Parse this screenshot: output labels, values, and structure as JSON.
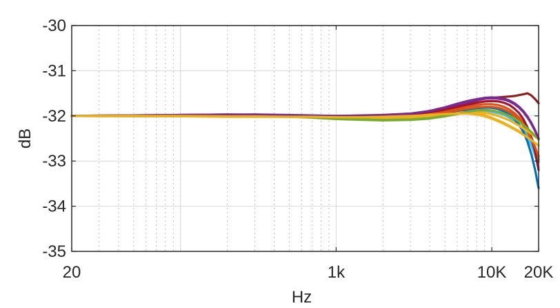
{
  "chart_data": {
    "type": "line",
    "title": "",
    "xlabel": "Hz",
    "ylabel": "dB",
    "xscale": "log",
    "xlim": [
      20,
      20000
    ],
    "ylim": [
      -35,
      -30
    ],
    "xticks": [
      20,
      1000,
      10000,
      20000
    ],
    "xtick_labels": [
      "20",
      "1k",
      "10K",
      "20K"
    ],
    "yticks": [
      -35,
      -34,
      -33,
      -32,
      -31,
      -30
    ],
    "ytick_labels": [
      "-35",
      "-34",
      "-33",
      "-32",
      "-31",
      "-30"
    ],
    "grid": true,
    "legend": "none",
    "x": [
      20,
      50,
      100,
      200,
      300,
      500,
      700,
      1000,
      1500,
      2000,
      3000,
      4000,
      5000,
      6000,
      7000,
      8000,
      9000,
      10000,
      11000,
      12000,
      13000,
      14000,
      15000,
      16000,
      17000,
      18000,
      19000,
      20000
    ],
    "series": [
      {
        "color": "#8e1f1f",
        "values": [
          -32,
          -31.99,
          -31.98,
          -31.97,
          -31.98,
          -31.99,
          -32.0,
          -32.0,
          -31.99,
          -31.98,
          -31.95,
          -31.9,
          -31.84,
          -31.78,
          -31.72,
          -31.66,
          -31.62,
          -31.6,
          -31.59,
          -31.58,
          -31.57,
          -31.56,
          -31.54,
          -31.52,
          -31.5,
          -31.55,
          -31.63,
          -31.72
        ]
      },
      {
        "color": "#7b2a8f",
        "values": [
          -32,
          -31.99,
          -31.98,
          -31.98,
          -31.97,
          -31.99,
          -32.01,
          -32.02,
          -32.02,
          -32.01,
          -31.98,
          -31.92,
          -31.84,
          -31.76,
          -31.7,
          -31.65,
          -31.62,
          -31.61,
          -31.62,
          -31.64,
          -31.68,
          -31.74,
          -31.82,
          -31.92,
          -32.04,
          -32.18,
          -32.34,
          -32.52
        ]
      },
      {
        "color": "#0072bd",
        "values": [
          -32,
          -32.0,
          -31.99,
          -31.99,
          -31.99,
          -32.0,
          -32.02,
          -32.03,
          -32.05,
          -32.06,
          -32.05,
          -32.0,
          -31.95,
          -31.9,
          -31.86,
          -31.83,
          -31.82,
          -31.82,
          -31.84,
          -31.87,
          -31.92,
          -31.98,
          -32.06,
          -32.16,
          -32.3,
          -32.48,
          -32.7,
          -32.96
        ]
      },
      {
        "color": "#d95319",
        "values": [
          -32,
          -32.0,
          -31.99,
          -31.99,
          -31.99,
          -31.99,
          -32.0,
          -32.01,
          -32.02,
          -32.02,
          -32.0,
          -31.96,
          -31.9,
          -31.84,
          -31.79,
          -31.76,
          -31.74,
          -31.74,
          -31.76,
          -31.8,
          -31.86,
          -31.94,
          -32.04,
          -32.16,
          -32.32,
          -32.52,
          -32.76,
          -33.02
        ]
      },
      {
        "color": "#edb120",
        "values": [
          -32,
          -32.01,
          -32.01,
          -32.02,
          -32.02,
          -32.02,
          -32.02,
          -32.03,
          -32.03,
          -32.02,
          -32.0,
          -31.97,
          -31.94,
          -31.92,
          -31.92,
          -31.94,
          -31.98,
          -32.04,
          -32.1,
          -32.16,
          -32.22,
          -32.28,
          -32.34,
          -32.4,
          -32.48,
          -32.58,
          -32.72,
          -32.9
        ]
      },
      {
        "color": "#77ac30",
        "values": [
          -32,
          -32.0,
          -32.0,
          -32.0,
          -32.01,
          -32.02,
          -32.04,
          -32.07,
          -32.09,
          -32.1,
          -32.09,
          -32.06,
          -32.01,
          -31.96,
          -31.92,
          -31.9,
          -31.89,
          -31.9,
          -31.92,
          -31.96,
          -32.02,
          -32.1,
          -32.2,
          -32.32,
          -32.46,
          -32.62,
          -32.8,
          -33.0
        ]
      },
      {
        "color": "#4dbeee",
        "values": [
          -32,
          -32.0,
          -32.0,
          -32.0,
          -32.0,
          -32.01,
          -32.02,
          -32.04,
          -32.06,
          -32.07,
          -32.06,
          -32.03,
          -31.99,
          -31.95,
          -31.92,
          -31.9,
          -31.9,
          -31.91,
          -31.94,
          -31.98,
          -32.04,
          -32.12,
          -32.22,
          -32.34,
          -32.48,
          -32.66,
          -32.88,
          -33.14
        ]
      },
      {
        "color": "#a2142f",
        "values": [
          -32,
          -32.0,
          -31.99,
          -31.98,
          -31.98,
          -31.99,
          -32.0,
          -32.01,
          -32.01,
          -32.0,
          -31.97,
          -31.92,
          -31.86,
          -31.8,
          -31.75,
          -31.71,
          -31.68,
          -31.67,
          -31.68,
          -31.71,
          -31.76,
          -31.84,
          -31.94,
          -32.08,
          -32.26,
          -32.5,
          -32.8,
          -33.2
        ]
      },
      {
        "color": "#0072bd",
        "values": [
          -32,
          -32.0,
          -32.0,
          -32.0,
          -32.0,
          -32.01,
          -32.02,
          -32.04,
          -32.05,
          -32.05,
          -32.03,
          -31.99,
          -31.94,
          -31.89,
          -31.85,
          -31.82,
          -31.81,
          -31.82,
          -31.85,
          -31.9,
          -31.97,
          -32.07,
          -32.2,
          -32.36,
          -32.58,
          -32.86,
          -33.2,
          -33.6
        ]
      },
      {
        "color": "#d95319",
        "values": [
          -32,
          -32.0,
          -31.99,
          -31.99,
          -31.99,
          -32.0,
          -32.01,
          -32.03,
          -32.04,
          -32.04,
          -32.02,
          -31.98,
          -31.93,
          -31.88,
          -31.84,
          -31.81,
          -31.8,
          -31.8,
          -31.82,
          -31.86,
          -31.92,
          -32.0,
          -32.1,
          -32.22,
          -32.36,
          -32.52,
          -32.7,
          -32.9
        ]
      },
      {
        "color": "#edb120",
        "values": [
          -32,
          -32.01,
          -32.01,
          -32.01,
          -32.01,
          -32.02,
          -32.03,
          -32.04,
          -32.05,
          -32.05,
          -32.04,
          -32.01,
          -31.98,
          -31.95,
          -31.93,
          -31.92,
          -31.93,
          -31.96,
          -32.0,
          -32.05,
          -32.1,
          -32.16,
          -32.22,
          -32.28,
          -32.34,
          -32.4,
          -32.46,
          -32.52
        ]
      },
      {
        "color": "#77ac30",
        "values": [
          -32,
          -32.0,
          -32.0,
          -32.0,
          -32.0,
          -32.01,
          -32.03,
          -32.06,
          -32.08,
          -32.09,
          -32.08,
          -32.05,
          -32.0,
          -31.95,
          -31.91,
          -31.88,
          -31.87,
          -31.88,
          -31.91,
          -31.95,
          -32.0,
          -32.06,
          -32.13,
          -32.2,
          -32.28,
          -32.36,
          -32.44,
          -32.52
        ]
      },
      {
        "color": "#7b2a8f",
        "values": [
          -32,
          -31.99,
          -31.98,
          -31.97,
          -31.97,
          -31.98,
          -31.99,
          -32.0,
          -32.0,
          -31.99,
          -31.95,
          -31.89,
          -31.81,
          -31.73,
          -31.67,
          -31.63,
          -31.6,
          -31.59,
          -31.6,
          -31.62,
          -31.66,
          -31.72,
          -31.8,
          -31.9,
          -32.02,
          -32.16,
          -32.32,
          -32.5
        ]
      },
      {
        "color": "#edb120",
        "values": [
          -32,
          -32.0,
          -32.0,
          -32.01,
          -32.01,
          -32.02,
          -32.02,
          -32.03,
          -32.03,
          -32.02,
          -32.0,
          -31.98,
          -31.96,
          -31.95,
          -31.95,
          -31.97,
          -32.01,
          -32.06,
          -32.12,
          -32.18,
          -32.24,
          -32.3,
          -32.36,
          -32.42,
          -32.48,
          -32.54,
          -32.6,
          -32.66
        ]
      }
    ]
  }
}
